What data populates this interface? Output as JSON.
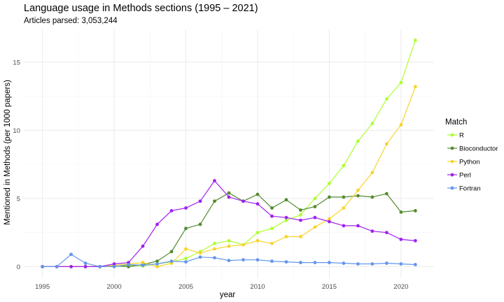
{
  "chart_data": {
    "type": "line",
    "title": "Language usage in Methods sections (1995 – 2021)",
    "subtitle": "Articles parsed: 3,053,244",
    "xlabel": "year",
    "ylabel": "Mentioned in Methods (per 1000 papers)",
    "xlim": [
      1993.7,
      2022.3
    ],
    "ylim": [
      -0.85,
      17.4
    ],
    "x_ticks": [
      1995,
      2000,
      2005,
      2010,
      2015,
      2020
    ],
    "y_ticks": [
      0,
      5,
      10,
      15
    ],
    "grid": true,
    "legend_title": "Match",
    "legend_position": "right",
    "x": [
      1995,
      1996,
      1997,
      1998,
      1999,
      2000,
      2001,
      2002,
      2003,
      2004,
      2005,
      2006,
      2007,
      2008,
      2009,
      2010,
      2011,
      2012,
      2013,
      2014,
      2015,
      2016,
      2017,
      2018,
      2019,
      2020,
      2021
    ],
    "series": [
      {
        "name": "R",
        "color": "#adff2f",
        "values": [
          0,
          0,
          0,
          0,
          0,
          0,
          0.1,
          0.05,
          0.2,
          0.35,
          0.6,
          1.1,
          1.7,
          1.9,
          1.6,
          2.5,
          2.8,
          3.4,
          3.8,
          5.0,
          6.1,
          7.4,
          9.2,
          10.5,
          12.3,
          13.5,
          16.6
        ]
      },
      {
        "name": "Bioconductor",
        "color": "#548b2f",
        "values": [
          0,
          0,
          0,
          0,
          0,
          0.05,
          0,
          0.15,
          0.4,
          1.1,
          2.8,
          3.1,
          4.8,
          5.4,
          4.8,
          5.3,
          4.3,
          4.9,
          4.15,
          4.4,
          5.1,
          5.1,
          5.2,
          5.1,
          5.35,
          4.0,
          4.1
        ]
      },
      {
        "name": "Python",
        "color": "#f8d42c",
        "values": [
          0,
          0,
          0,
          0,
          0,
          0.1,
          0.2,
          0.3,
          0,
          0.25,
          1.3,
          1.0,
          1.3,
          1.5,
          1.6,
          1.9,
          1.7,
          2.2,
          2.2,
          2.9,
          3.5,
          4.3,
          5.6,
          6.9,
          9.0,
          10.4,
          13.2
        ]
      },
      {
        "name": "Perl",
        "color": "#a020f0",
        "values": [
          0,
          0,
          0,
          0,
          0,
          0.2,
          0.3,
          1.5,
          3.1,
          4.1,
          4.3,
          4.8,
          6.3,
          5.1,
          4.8,
          4.6,
          3.7,
          3.6,
          3.4,
          3.6,
          3.3,
          3.0,
          3.0,
          2.6,
          2.5,
          2.0,
          1.9
        ]
      },
      {
        "name": "Fortran",
        "color": "#6495ed",
        "values": [
          0,
          0,
          0.9,
          0.25,
          0,
          0,
          0.15,
          0.1,
          0.2,
          0.4,
          0.35,
          0.7,
          0.65,
          0.45,
          0.5,
          0.5,
          0.4,
          0.35,
          0.3,
          0.3,
          0.3,
          0.25,
          0.2,
          0.2,
          0.25,
          0.2,
          0.15
        ]
      }
    ]
  }
}
